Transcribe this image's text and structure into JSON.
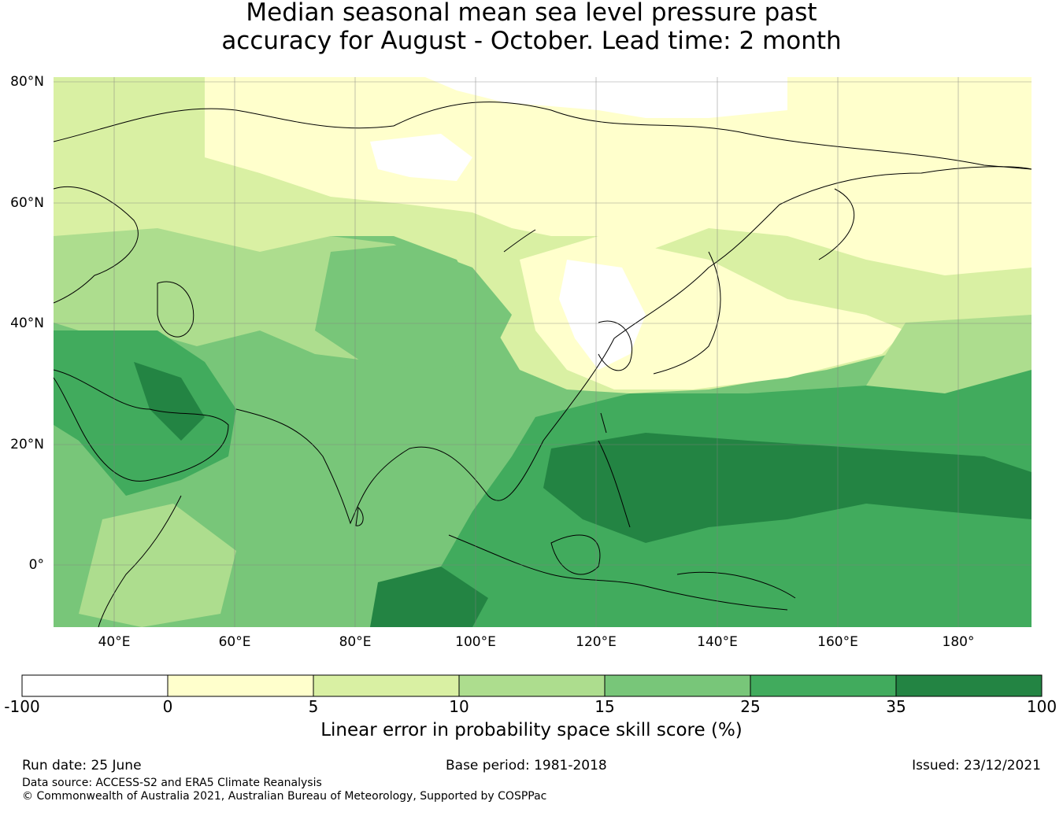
{
  "title_line1": "Median seasonal mean sea level pressure past",
  "title_line2": "accuracy for August - October. Lead time: 2 month",
  "map": {
    "lat_labels": [
      "80°N",
      "60°N",
      "40°N",
      "20°N",
      "0°"
    ],
    "lon_labels": [
      "40°E",
      "60°E",
      "80°E",
      "100°E",
      "120°E",
      "140°E",
      "160°E",
      "180°"
    ],
    "extent": {
      "lon_min": 30,
      "lon_max": 192,
      "lat_min": -10,
      "lat_max": 81
    }
  },
  "colorbar": {
    "ticks": [
      "-100",
      "0",
      "5",
      "10",
      "15",
      "25",
      "35",
      "100"
    ],
    "colors": [
      "#ffffff",
      "#ffffcc",
      "#d9f0a3",
      "#addd8e",
      "#78c679",
      "#41ab5d",
      "#238443"
    ],
    "label": "Linear error in probability space skill score (%)"
  },
  "footer": {
    "run_date": "Run date: 25 June",
    "base_period": "Base period: 1981-2018",
    "issued": "Issued: 23/12/2021",
    "data_source": "Data source: ACCESS-S2 and ERA5 Climate Reanalysis",
    "copyright": "© Commonwealth of Australia 2021, Australian Bureau of Meteorology, Supported by COSPPac"
  }
}
